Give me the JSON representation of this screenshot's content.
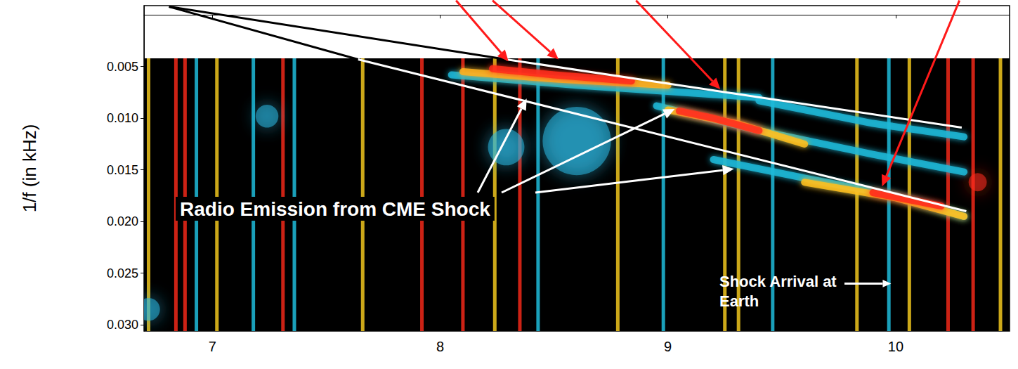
{
  "chart_data": {
    "type": "spectrogram",
    "ylabel": "1/f (in kHz)",
    "xlim": [
      6.7,
      10.5
    ],
    "xticks": [
      7,
      8,
      9,
      10
    ],
    "ylim": [
      0.0306,
      -0.0009
    ],
    "yticks": [
      0.005,
      {
        "value": 0.01,
        "label": "0.010"
      },
      0.015,
      {
        "value": 0.02,
        "label": "0.020"
      },
      0.025,
      {
        "value": 0.03,
        "label": "0.030"
      }
    ],
    "coverage": [
      0.0042,
      0.0306
    ],
    "series": [
      {
        "type": "burst",
        "x": [
          6.72,
          6.84,
          6.88,
          6.93,
          7.02,
          7.18,
          7.31,
          7.36,
          7.66,
          7.92,
          8.1,
          8.24,
          8.35,
          8.43,
          8.78,
          8.98,
          9.25,
          9.31,
          9.46,
          9.83,
          9.97,
          10.06,
          10.23,
          10.34,
          10.46
        ],
        "colors": [
          "#ffd21f",
          "#ff2a1a",
          "#ff2a1a",
          "#20c8e8",
          "#ffd21f",
          "#20c8e8",
          "#ff2a1a",
          "#20c8e8",
          "#ffd21f",
          "#ff2a1a",
          "#ff2a1a",
          "#ffd21f",
          "#ff2a1a",
          "#20c8e8",
          "#ffd21f",
          "#20c8e8",
          "#ffd21f",
          "#ffd21f",
          "#20c8e8",
          "#ffd21f",
          "#20c8e8",
          "#ffd21f",
          "#ff2a1a",
          "#ff2a1a",
          "#ffd21f"
        ]
      },
      {
        "type": "blob",
        "x": [
          8.6,
          8.29,
          7.24,
          6.72,
          10.36
        ],
        "values": [
          0.0122,
          0.0128,
          0.0098,
          0.0285,
          0.0162
        ],
        "radius": [
          0.15,
          0.08,
          0.05,
          0.05,
          0.04
        ],
        "colors": [
          "#29b6e0",
          "#29b6e0",
          "#29b6e0",
          "#29b6e0",
          "#ff2a1a"
        ]
      },
      {
        "type": "band",
        "color": "#1fb8d8",
        "x": [
          8.05,
          8.6,
          9.4
        ],
        "values": [
          0.0058,
          0.0068,
          0.008
        ]
      },
      {
        "type": "band",
        "color": "#ffb020",
        "x": [
          8.1,
          8.5,
          9.0
        ],
        "values": [
          0.0055,
          0.0062,
          0.0068
        ]
      },
      {
        "type": "band",
        "color": "#ff2a1a",
        "x": [
          8.23,
          8.5,
          8.84
        ],
        "values": [
          0.0052,
          0.0058,
          0.0064
        ]
      },
      {
        "type": "band",
        "color": "#1fb8d8",
        "x": [
          8.95,
          9.4,
          9.9,
          10.3
        ],
        "values": [
          0.0088,
          0.0112,
          0.0135,
          0.0152
        ]
      },
      {
        "type": "band",
        "color": "#1fb8d8",
        "x": [
          9.4,
          9.9,
          10.3
        ],
        "values": [
          0.0083,
          0.0105,
          0.0118
        ]
      },
      {
        "type": "band",
        "color": "#ffc020",
        "x": [
          9.0,
          9.3,
          9.6
        ],
        "values": [
          0.0092,
          0.0105,
          0.0125
        ]
      },
      {
        "type": "band",
        "color": "#ff3020",
        "x": [
          9.05,
          9.2,
          9.4
        ],
        "values": [
          0.0093,
          0.01,
          0.0112
        ]
      },
      {
        "type": "band",
        "color": "#1fb8d8",
        "x": [
          9.2,
          9.6,
          10.0,
          10.3
        ],
        "values": [
          0.014,
          0.0158,
          0.0175,
          0.0195
        ]
      },
      {
        "type": "band",
        "color": "#ffc020",
        "x": [
          9.6,
          10.0,
          10.3
        ],
        "values": [
          0.0162,
          0.0177,
          0.0195
        ]
      },
      {
        "type": "band",
        "color": "#ff2a1a",
        "x": [
          9.9,
          10.2
        ],
        "values": [
          0.0172,
          0.0185
        ]
      },
      {
        "type": "fit",
        "colors": [
          "#000000",
          "#ffffff"
        ],
        "x": [
          6.81,
          7.64,
          10.31
        ],
        "values": [
          -0.0008,
          0.0043,
          0.019
        ]
      },
      {
        "type": "fit",
        "colors": [
          "#000000",
          "#ffffff"
        ],
        "x": [
          6.81,
          8.29,
          10.29
        ],
        "values": [
          -0.0008,
          0.0043,
          0.0109
        ]
      }
    ],
    "annotations": [
      {
        "text": "Radio Emission from CME Shock",
        "x": [
          8.38,
          9.03,
          9.29
        ],
        "values": [
          0.0081,
          0.0091,
          0.0149
        ]
      },
      {
        "text": "Shock Arrival at Earth",
        "x": [
          9.98
        ],
        "values": [
          0.026
        ]
      }
    ],
    "pointers": [
      {
        "color": "#ff1a1a",
        "x": [
          8.07,
          8.3
        ],
        "values": [
          -0.0014,
          0.0045
        ]
      },
      {
        "color": "#ff1a1a",
        "x": [
          8.23,
          8.52
        ],
        "values": [
          -0.0014,
          0.0043
        ]
      },
      {
        "color": "#ff1a1a",
        "x": [
          8.86,
          9.23
        ],
        "values": [
          -0.0014,
          0.0072
        ]
      },
      {
        "color": "#ff1a1a",
        "x": [
          10.28,
          9.94
        ],
        "values": [
          -0.0014,
          0.0166
        ]
      }
    ]
  }
}
